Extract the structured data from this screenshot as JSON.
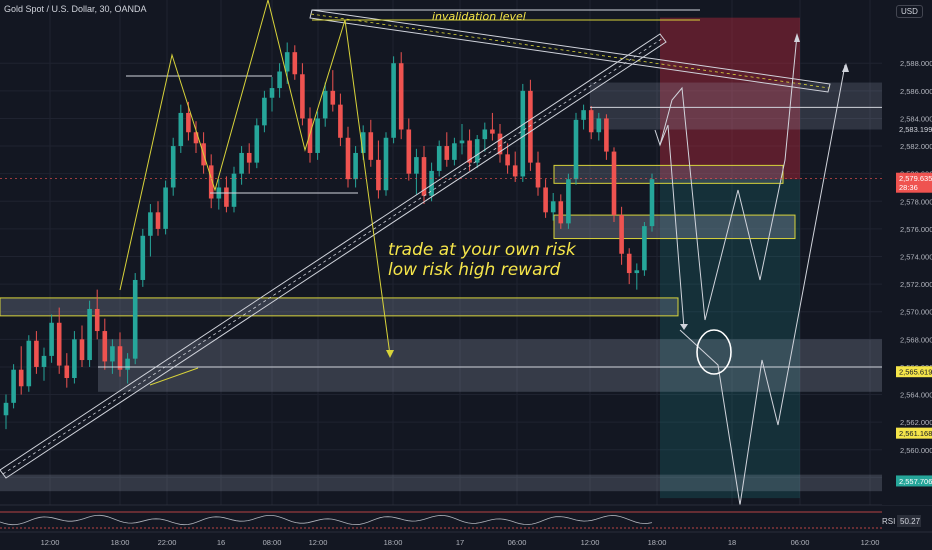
{
  "header": {
    "symbol_title": "Gold Spot / U.S. Dollar, 30, OANDA",
    "currency": "USD"
  },
  "annotations": {
    "invalidation": "invalidation level",
    "note_line1": "trade at your own risk",
    "note_line2": "low risk high reward"
  },
  "chart_data": {
    "type": "candlestick",
    "symbol": "XAUUSD",
    "timeframe": "30",
    "source": "OANDA",
    "ylim": [
      2556,
      2592
    ],
    "y_ticks": [
      2558,
      2560,
      2562,
      2564,
      2566,
      2568,
      2570,
      2572,
      2574,
      2576,
      2578,
      2580,
      2582,
      2584,
      2586,
      2588
    ],
    "y_tick_labels": [
      "2,558.000",
      "2,560.000",
      "2,562.000",
      "2,564.000",
      "2,566.000",
      "2,568.000",
      "2,570.000",
      "2,572.000",
      "2,574.000",
      "2,576.000",
      "2,578.000",
      "2,580.000",
      "2,582.000",
      "2,584.000",
      "2,586.000",
      "2,588.000"
    ],
    "x_ticks": [
      "12:00",
      "18:00",
      "22:00",
      "16",
      "08:00",
      "12:00",
      "18:00",
      "17",
      "06:00",
      "12:00",
      "18:00",
      "18",
      "06:00",
      "12:00"
    ],
    "price_labels": [
      {
        "value": 2583.199,
        "text": "2,583.199",
        "style": "plain"
      },
      {
        "value": 2579.635,
        "text": "2,579.635",
        "sub": "28:36",
        "style": "current"
      },
      {
        "value": 2565.619,
        "text": "2,565.619",
        "style": "highlight"
      },
      {
        "value": 2561.168,
        "text": "2,561.168",
        "style": "highlight"
      },
      {
        "value": 2557.706,
        "text": "2,557.706",
        "style": "green"
      }
    ],
    "current_price": 2579.635,
    "candles": [
      [
        2562.5,
        2564.0,
        2561.5,
        2563.4
      ],
      [
        2563.4,
        2566.2,
        2563.0,
        2565.8
      ],
      [
        2565.8,
        2567.5,
        2564.0,
        2564.6
      ],
      [
        2564.6,
        2568.3,
        2564.2,
        2567.9
      ],
      [
        2567.9,
        2568.6,
        2565.5,
        2566.0
      ],
      [
        2566.0,
        2567.4,
        2565.0,
        2566.8
      ],
      [
        2566.8,
        2569.8,
        2566.3,
        2569.2
      ],
      [
        2569.2,
        2570.3,
        2565.5,
        2566.1
      ],
      [
        2566.1,
        2567.0,
        2564.5,
        2565.2
      ],
      [
        2565.2,
        2568.6,
        2564.8,
        2568.0
      ],
      [
        2568.0,
        2569.0,
        2566.0,
        2566.5
      ],
      [
        2566.5,
        2570.8,
        2566.0,
        2570.2
      ],
      [
        2570.2,
        2571.6,
        2568.0,
        2568.6
      ],
      [
        2568.6,
        2569.5,
        2565.8,
        2566.4
      ],
      [
        2566.4,
        2568.0,
        2565.5,
        2567.5
      ],
      [
        2567.5,
        2568.5,
        2565.3,
        2565.8
      ],
      [
        2565.8,
        2567.0,
        2564.8,
        2566.6
      ],
      [
        2566.6,
        2572.8,
        2566.2,
        2572.3
      ],
      [
        2572.3,
        2576.0,
        2571.8,
        2575.5
      ],
      [
        2575.5,
        2577.8,
        2574.0,
        2577.2
      ],
      [
        2577.2,
        2578.0,
        2575.5,
        2576.0
      ],
      [
        2576.0,
        2579.5,
        2575.6,
        2579.0
      ],
      [
        2579.0,
        2582.6,
        2578.4,
        2582.0
      ],
      [
        2582.0,
        2585.0,
        2581.5,
        2584.4
      ],
      [
        2584.4,
        2585.2,
        2582.4,
        2583.0
      ],
      [
        2583.0,
        2583.8,
        2581.5,
        2582.2
      ],
      [
        2582.2,
        2583.0,
        2580.0,
        2580.6
      ],
      [
        2580.6,
        2581.4,
        2577.5,
        2578.2
      ],
      [
        2578.2,
        2579.6,
        2577.4,
        2579.0
      ],
      [
        2579.0,
        2579.8,
        2577.2,
        2577.6
      ],
      [
        2577.6,
        2580.5,
        2577.2,
        2580.0
      ],
      [
        2580.0,
        2582.0,
        2579.2,
        2581.5
      ],
      [
        2581.5,
        2582.2,
        2580.0,
        2580.8
      ],
      [
        2580.8,
        2584.0,
        2580.4,
        2583.5
      ],
      [
        2583.5,
        2586.0,
        2583.0,
        2585.5
      ],
      [
        2585.5,
        2587.0,
        2584.5,
        2586.2
      ],
      [
        2586.2,
        2588.0,
        2585.5,
        2587.4
      ],
      [
        2587.4,
        2589.5,
        2586.5,
        2588.8
      ],
      [
        2588.8,
        2589.3,
        2586.8,
        2587.2
      ],
      [
        2587.2,
        2588.0,
        2583.5,
        2584.0
      ],
      [
        2584.0,
        2584.8,
        2580.8,
        2581.5
      ],
      [
        2581.5,
        2584.5,
        2581.0,
        2584.0
      ],
      [
        2584.0,
        2586.6,
        2583.4,
        2586.0
      ],
      [
        2586.0,
        2587.5,
        2584.5,
        2585.0
      ],
      [
        2585.0,
        2585.8,
        2582.0,
        2582.6
      ],
      [
        2582.6,
        2583.4,
        2579.0,
        2579.6
      ],
      [
        2579.6,
        2582.0,
        2579.0,
        2581.5
      ],
      [
        2581.5,
        2583.5,
        2581.0,
        2583.0
      ],
      [
        2583.0,
        2583.9,
        2580.5,
        2581.0
      ],
      [
        2581.0,
        2582.4,
        2578.2,
        2578.8
      ],
      [
        2578.8,
        2583.0,
        2578.4,
        2582.6
      ],
      [
        2582.6,
        2588.5,
        2582.2,
        2588.0
      ],
      [
        2588.0,
        2588.8,
        2582.5,
        2583.2
      ],
      [
        2583.2,
        2584.0,
        2579.5,
        2580.0
      ],
      [
        2580.0,
        2581.8,
        2578.5,
        2581.2
      ],
      [
        2581.2,
        2582.0,
        2577.8,
        2578.4
      ],
      [
        2578.4,
        2580.8,
        2578.0,
        2580.2
      ],
      [
        2580.2,
        2582.4,
        2579.8,
        2582.0
      ],
      [
        2582.0,
        2583.0,
        2580.5,
        2581.0
      ],
      [
        2581.0,
        2582.6,
        2580.6,
        2582.2
      ],
      [
        2582.2,
        2583.6,
        2581.4,
        2582.4
      ],
      [
        2582.4,
        2583.2,
        2580.2,
        2580.8
      ],
      [
        2580.8,
        2582.8,
        2580.4,
        2582.5
      ],
      [
        2582.5,
        2583.7,
        2581.6,
        2583.2
      ],
      [
        2583.2,
        2584.4,
        2582.4,
        2582.9
      ],
      [
        2582.9,
        2583.6,
        2580.8,
        2581.4
      ],
      [
        2581.4,
        2582.2,
        2580.0,
        2580.6
      ],
      [
        2580.6,
        2581.6,
        2579.4,
        2579.8
      ],
      [
        2579.8,
        2586.5,
        2579.4,
        2586.0
      ],
      [
        2586.0,
        2586.8,
        2580.2,
        2580.8
      ],
      [
        2580.8,
        2581.6,
        2578.4,
        2579.0
      ],
      [
        2579.0,
        2579.6,
        2576.8,
        2577.2
      ],
      [
        2577.2,
        2578.6,
        2576.6,
        2578.0
      ],
      [
        2578.0,
        2578.5,
        2576.0,
        2576.4
      ],
      [
        2576.4,
        2580.0,
        2576.0,
        2579.6
      ],
      [
        2579.6,
        2584.4,
        2579.2,
        2583.9
      ],
      [
        2583.9,
        2585.0,
        2583.2,
        2584.6
      ],
      [
        2584.6,
        2584.9,
        2582.5,
        2583.0
      ],
      [
        2583.0,
        2584.4,
        2582.4,
        2584.0
      ],
      [
        2584.0,
        2584.3,
        2581.0,
        2581.6
      ],
      [
        2581.6,
        2581.9,
        2576.5,
        2577.0
      ],
      [
        2577.0,
        2577.6,
        2573.4,
        2574.2
      ],
      [
        2574.2,
        2574.6,
        2572.0,
        2572.8
      ],
      [
        2572.8,
        2573.5,
        2571.6,
        2573.0
      ],
      [
        2573.0,
        2576.5,
        2572.6,
        2576.2
      ],
      [
        2576.2,
        2580.0,
        2575.8,
        2579.6
      ]
    ],
    "rsi": {
      "label": "RSI",
      "value": "50.27"
    }
  }
}
